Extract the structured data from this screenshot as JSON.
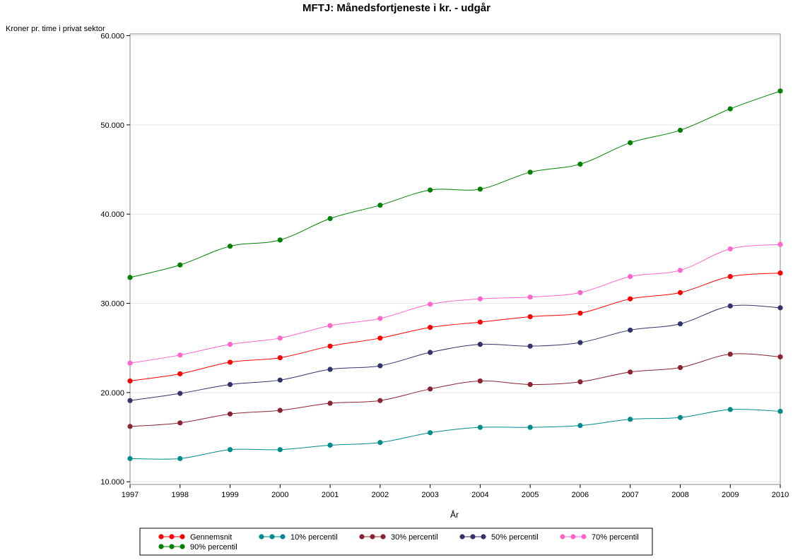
{
  "chart_data": {
    "type": "line",
    "title": "MFTJ: Månedsfortjeneste i kr. - udgår",
    "ylabel": "Kroner pr. time i privat sektor",
    "xlabel": "År",
    "x": [
      1997,
      1998,
      1999,
      2000,
      2001,
      2002,
      2003,
      2004,
      2005,
      2006,
      2007,
      2008,
      2009,
      2010
    ],
    "x_tick_labels": [
      "1997",
      "1998",
      "1999",
      "2000",
      "2001",
      "2002",
      "2003",
      "2004",
      "2005",
      "2006",
      "2007",
      "2008",
      "2009",
      "2010"
    ],
    "xlim": [
      1997,
      2010
    ],
    "ylim": [
      9700,
      60200
    ],
    "y_ticks": [
      10000,
      20000,
      30000,
      40000,
      50000,
      60000
    ],
    "y_tick_labels": [
      "10.000",
      "20.000",
      "30.000",
      "40.000",
      "50.000",
      "60.000"
    ],
    "grid": true,
    "legend_position": "bottom",
    "series": [
      {
        "name": "Gennemsnit",
        "color": "#ff0000",
        "values": [
          21300,
          22100,
          23400,
          23900,
          25200,
          26100,
          27300,
          27900,
          28500,
          28900,
          30500,
          31200,
          33000,
          33400
        ]
      },
      {
        "name": "10% percentil",
        "color": "#008b8b",
        "values": [
          12600,
          12600,
          13600,
          13600,
          14100,
          14400,
          15500,
          16100,
          16100,
          16300,
          17000,
          17200,
          18100,
          17900
        ]
      },
      {
        "name": "30% percentil",
        "color": "#8b2232",
        "values": [
          16200,
          16600,
          17600,
          18000,
          18800,
          19100,
          20400,
          21300,
          20900,
          21200,
          22300,
          22800,
          24300,
          24000
        ]
      },
      {
        "name": "50% percentil",
        "color": "#33336b",
        "values": [
          19100,
          19900,
          20900,
          21400,
          22600,
          23000,
          24500,
          25400,
          25200,
          25600,
          27000,
          27700,
          29700,
          29500
        ]
      },
      {
        "name": "70% percentil",
        "color": "#ff66cc",
        "values": [
          23300,
          24200,
          25400,
          26100,
          27500,
          28300,
          29900,
          30500,
          30700,
          31200,
          33000,
          33700,
          36100,
          36600
        ]
      },
      {
        "name": "90% percentil",
        "color": "#008000",
        "values": [
          32900,
          34300,
          36400,
          37100,
          39500,
          41000,
          42700,
          42800,
          44700,
          45600,
          48000,
          49400,
          51800,
          53800
        ]
      }
    ]
  }
}
